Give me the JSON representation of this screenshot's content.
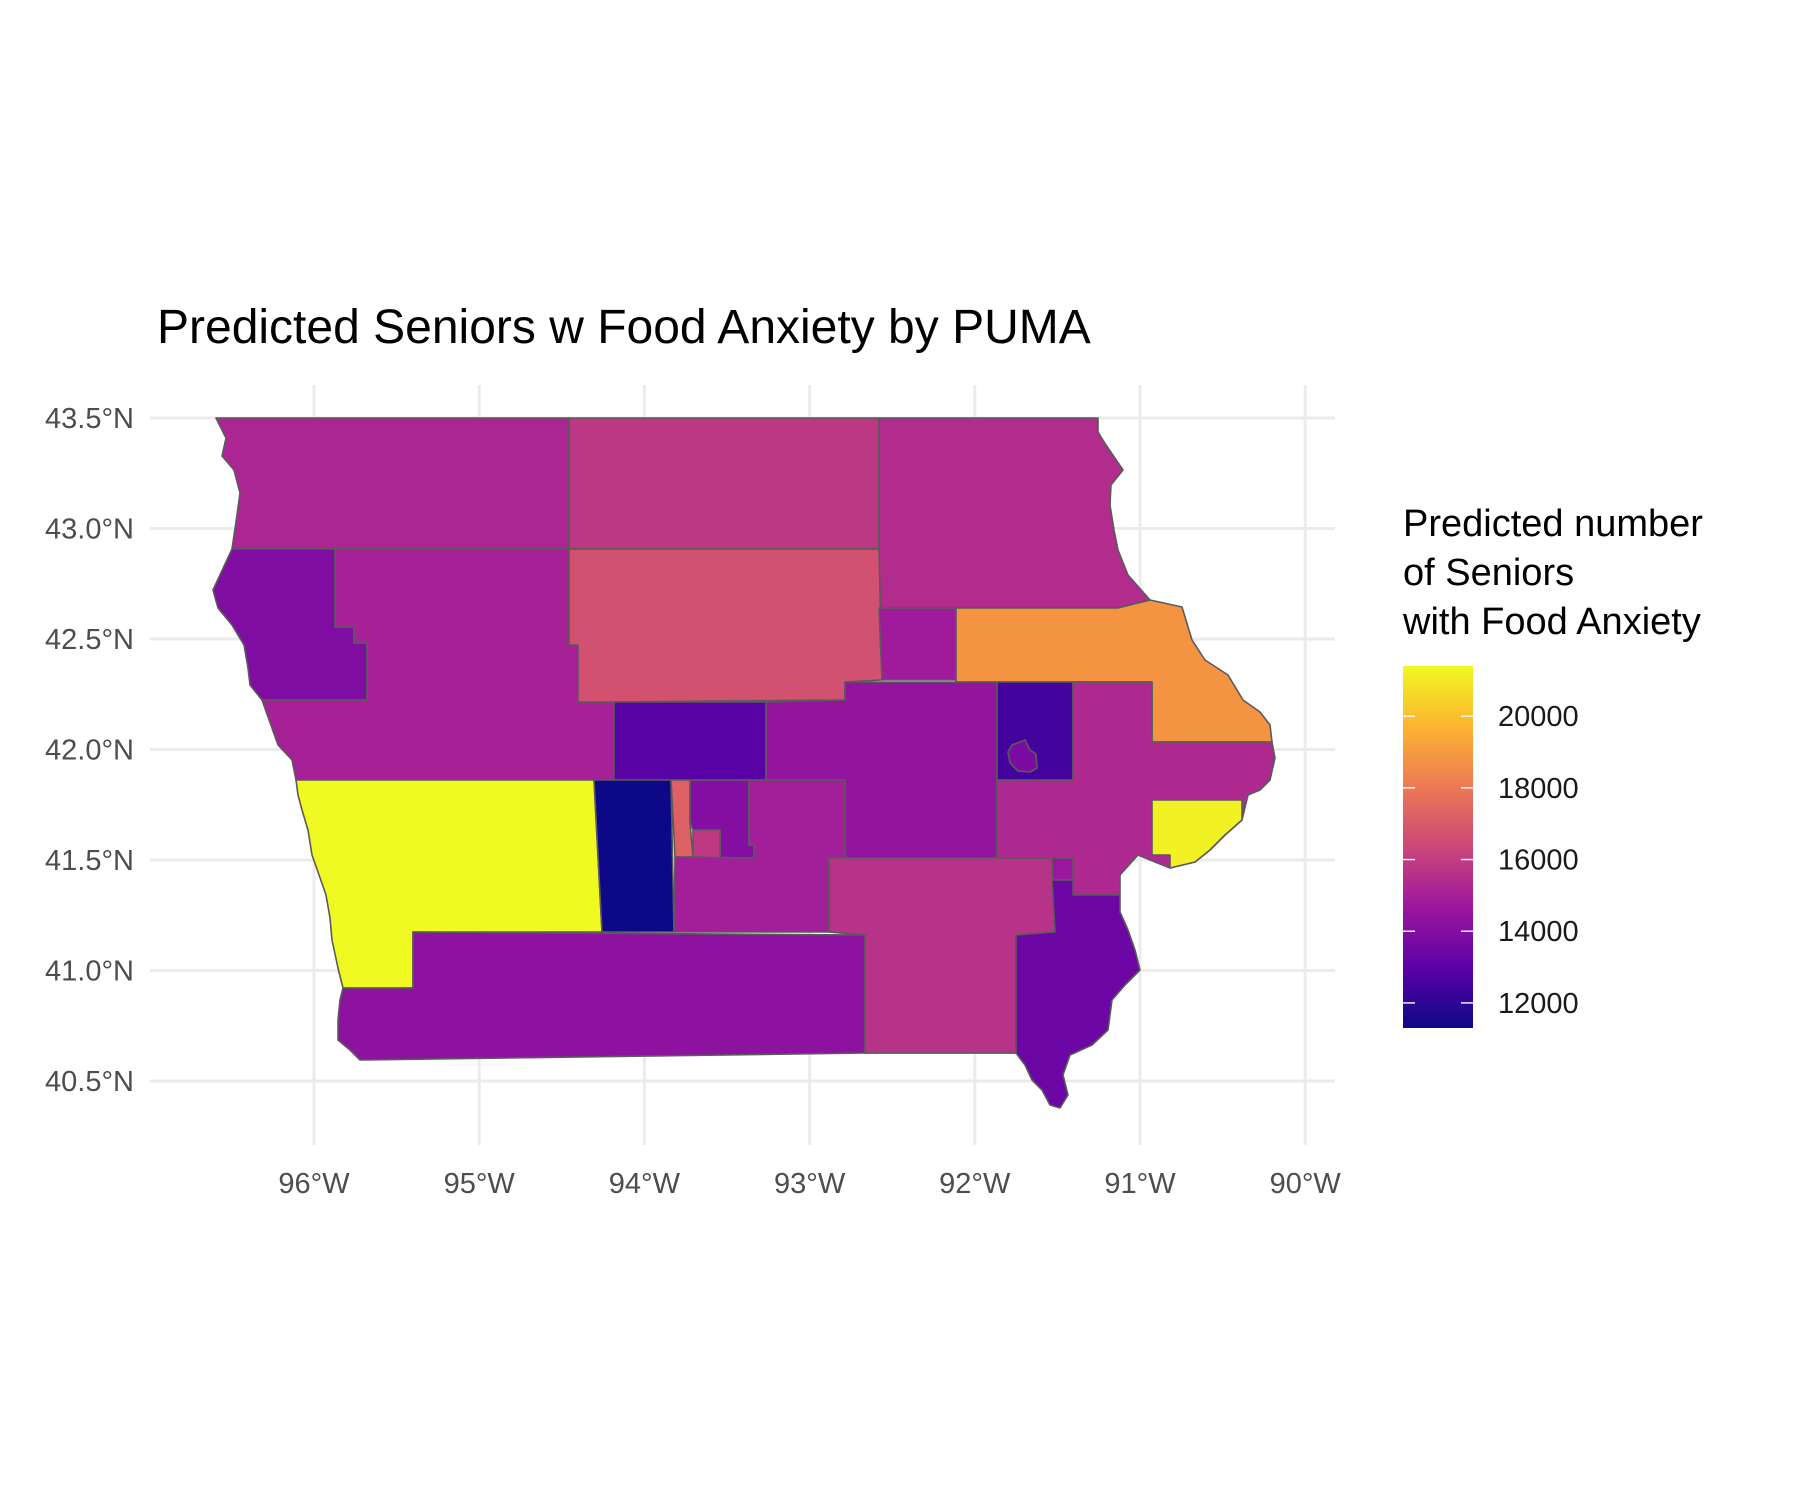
{
  "title": "Predicted Seniors w Food Anxiety by PUMA",
  "chart_data": {
    "type": "choropleth",
    "title": "Predicted Seniors w Food Anxiety by PUMA",
    "xlabel": "",
    "ylabel": "",
    "lon_range": [
      -96.9,
      -89.9
    ],
    "lat_range": [
      40.25,
      43.65
    ],
    "x_ticks": [
      "96°W",
      "95°W",
      "94°W",
      "93°W",
      "92°W",
      "91°W",
      "90°W"
    ],
    "y_ticks": [
      "43.5°N",
      "43.0°N",
      "42.5°N",
      "42.0°N",
      "41.5°N",
      "41.0°N",
      "40.5°N"
    ],
    "grid": true,
    "legend": {
      "position": "right",
      "title_lines": [
        "Predicted number",
        "of Seniors",
        "with Food Anxiety"
      ],
      "min": 11300,
      "max": 21400,
      "ticks": [
        12000,
        14000,
        16000,
        18000,
        20000
      ],
      "tick_labels": [
        "12000",
        "14000",
        "16000",
        "18000",
        "20000"
      ],
      "palette": [
        "#0d0887",
        "#5c01a6",
        "#9c179e",
        "#cc4778",
        "#ed7953",
        "#fdb42f",
        "#f0f921"
      ]
    },
    "regions": [
      {
        "id": "northwest",
        "value": 15200
      },
      {
        "id": "north-central",
        "value": 15800
      },
      {
        "id": "northeast",
        "value": 15400
      },
      {
        "id": "sioux-city",
        "value": 13900
      },
      {
        "id": "west-central",
        "value": 15000
      },
      {
        "id": "fort-dodge",
        "value": 16700
      },
      {
        "id": "waterloo",
        "value": 14800
      },
      {
        "id": "dubuque",
        "value": 18800
      },
      {
        "id": "ames-area",
        "value": 12900
      },
      {
        "id": "marshalltown",
        "value": 14400
      },
      {
        "id": "cedar-rapids-ring",
        "value": 12500
      },
      {
        "id": "cedar-rapids-city",
        "value": 13800
      },
      {
        "id": "eastern",
        "value": 15300
      },
      {
        "id": "davenport",
        "value": 21200
      },
      {
        "id": "southwest",
        "value": 21400
      },
      {
        "id": "dallas-county",
        "value": 11300
      },
      {
        "id": "west-des-moines",
        "value": 17200
      },
      {
        "id": "des-moines-north",
        "value": 14000
      },
      {
        "id": "des-moines-south",
        "value": 15900
      },
      {
        "id": "polk-east",
        "value": 14900
      },
      {
        "id": "iowa-city",
        "value": 14600
      },
      {
        "id": "south-central",
        "value": 14300
      },
      {
        "id": "ottumwa",
        "value": 15600
      },
      {
        "id": "burlington",
        "value": 13400
      }
    ]
  }
}
